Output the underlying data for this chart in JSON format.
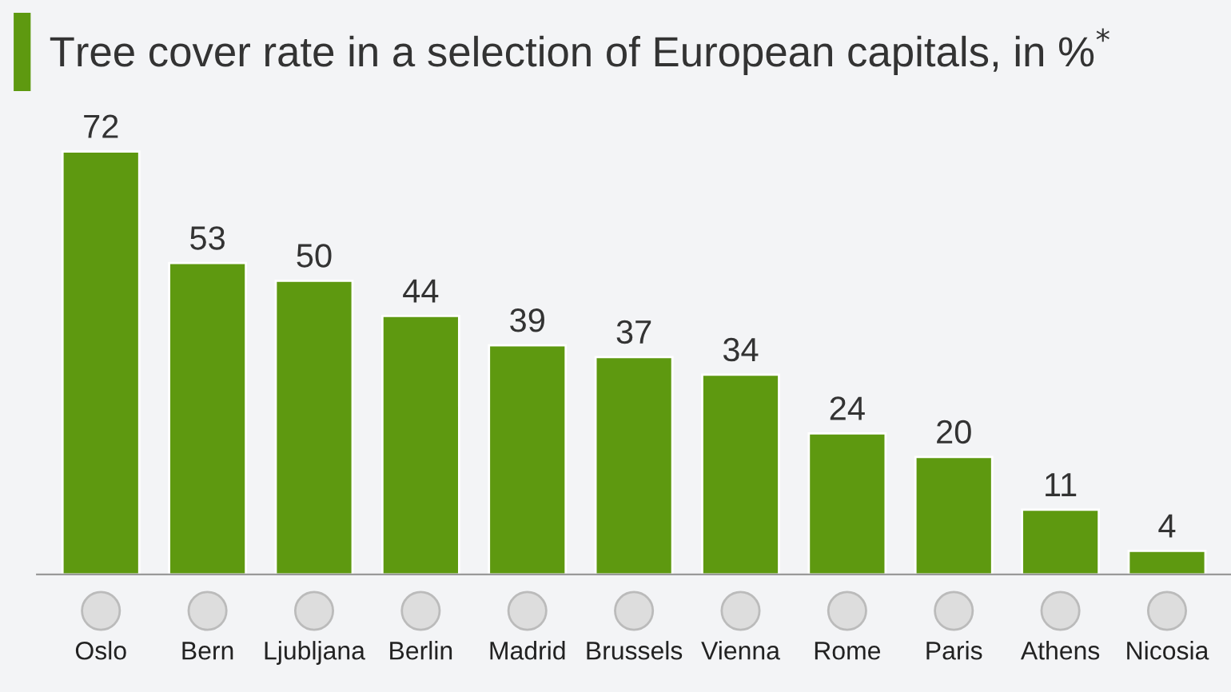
{
  "chart_data": {
    "type": "bar",
    "title": "Tree cover rate in a selection of European capitals, in %$^{*}$",
    "categories": [
      "Oslo",
      "Bern",
      "Ljubljana",
      "Berlin",
      "Madrid",
      "Brussels",
      "Vienna",
      "Rome",
      "Paris",
      "Athens",
      "Nicosia"
    ],
    "values": [
      72,
      53,
      50,
      44,
      39,
      37,
      34,
      24,
      20,
      11,
      4
    ],
    "color": "#5e9910",
    "data_labels": true,
    "grid": false,
    "legend": false
  }
}
